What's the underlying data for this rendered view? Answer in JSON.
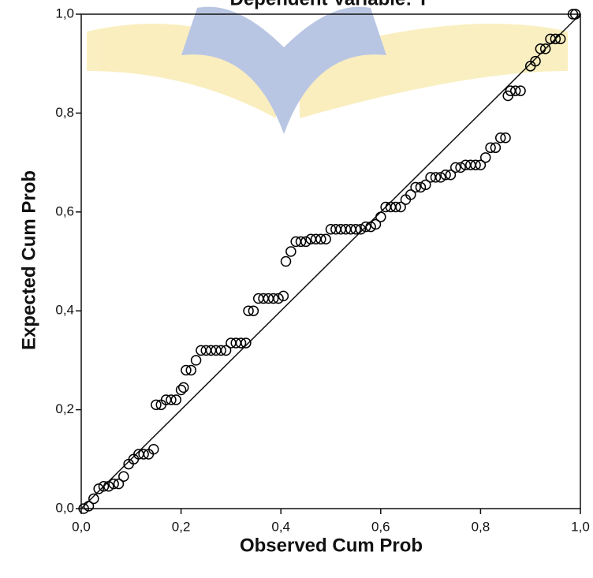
{
  "chart_data": {
    "type": "scatter",
    "title": "Dependent Variable: Y",
    "x_label": "Observed Cum Prob",
    "y_label": "Expected Cum Prob",
    "color": "#000000",
    "xlim": [
      0,
      1
    ],
    "ylim": [
      0,
      1
    ],
    "xticks": [
      {
        "value": 0,
        "label": "0,0"
      },
      {
        "value": 0.2,
        "label": "0,2"
      },
      {
        "value": 0.4,
        "label": "0,4"
      },
      {
        "value": 0.6,
        "label": "0,6"
      },
      {
        "value": 0.8,
        "label": "0,8"
      },
      {
        "value": 1,
        "label": "1,0"
      }
    ],
    "yticks": [
      {
        "value": 0,
        "label": "0,0"
      },
      {
        "value": 0.2,
        "label": "0,2"
      },
      {
        "value": 0.4,
        "label": "0,4"
      },
      {
        "value": 0.6,
        "label": "0,6"
      },
      {
        "value": 0.8,
        "label": "0,8"
      },
      {
        "value": 1,
        "label": "1,0"
      }
    ],
    "x": [
      0.005,
      0.015,
      0.025,
      0.035,
      0.045,
      0.055,
      0.065,
      0.075,
      0.085,
      0.095,
      0.105,
      0.115,
      0.125,
      0.135,
      0.145,
      0.15,
      0.16,
      0.17,
      0.18,
      0.19,
      0.2,
      0.205,
      0.21,
      0.22,
      0.23,
      0.24,
      0.25,
      0.26,
      0.27,
      0.28,
      0.29,
      0.3,
      0.31,
      0.32,
      0.33,
      0.335,
      0.345,
      0.355,
      0.365,
      0.375,
      0.385,
      0.395,
      0.405,
      0.41,
      0.42,
      0.43,
      0.44,
      0.45,
      0.46,
      0.47,
      0.48,
      0.49,
      0.5,
      0.51,
      0.52,
      0.53,
      0.54,
      0.55,
      0.56,
      0.57,
      0.58,
      0.59,
      0.6,
      0.61,
      0.62,
      0.63,
      0.64,
      0.65,
      0.66,
      0.67,
      0.68,
      0.69,
      0.7,
      0.71,
      0.72,
      0.73,
      0.74,
      0.75,
      0.76,
      0.77,
      0.78,
      0.79,
      0.8,
      0.81,
      0.82,
      0.83,
      0.84,
      0.85,
      0.855,
      0.86,
      0.87,
      0.88,
      0.9,
      0.91,
      0.92,
      0.93,
      0.94,
      0.95,
      0.96,
      0.985,
      0.99
    ],
    "values": [
      0.0,
      0.005,
      0.02,
      0.04,
      0.045,
      0.045,
      0.05,
      0.05,
      0.065,
      0.09,
      0.1,
      0.11,
      0.11,
      0.11,
      0.12,
      0.21,
      0.21,
      0.22,
      0.22,
      0.22,
      0.24,
      0.245,
      0.28,
      0.28,
      0.3,
      0.32,
      0.32,
      0.32,
      0.32,
      0.32,
      0.32,
      0.335,
      0.335,
      0.335,
      0.335,
      0.4,
      0.4,
      0.425,
      0.425,
      0.425,
      0.425,
      0.425,
      0.43,
      0.5,
      0.52,
      0.54,
      0.54,
      0.54,
      0.545,
      0.545,
      0.545,
      0.545,
      0.565,
      0.565,
      0.565,
      0.565,
      0.565,
      0.565,
      0.565,
      0.57,
      0.57,
      0.575,
      0.59,
      0.61,
      0.61,
      0.61,
      0.61,
      0.625,
      0.635,
      0.65,
      0.65,
      0.655,
      0.67,
      0.67,
      0.67,
      0.675,
      0.675,
      0.69,
      0.69,
      0.695,
      0.695,
      0.695,
      0.695,
      0.71,
      0.73,
      0.73,
      0.75,
      0.75,
      0.835,
      0.845,
      0.845,
      0.845,
      0.895,
      0.905,
      0.93,
      0.93,
      0.95,
      0.95,
      0.95,
      1.0,
      1.0
    ]
  }
}
